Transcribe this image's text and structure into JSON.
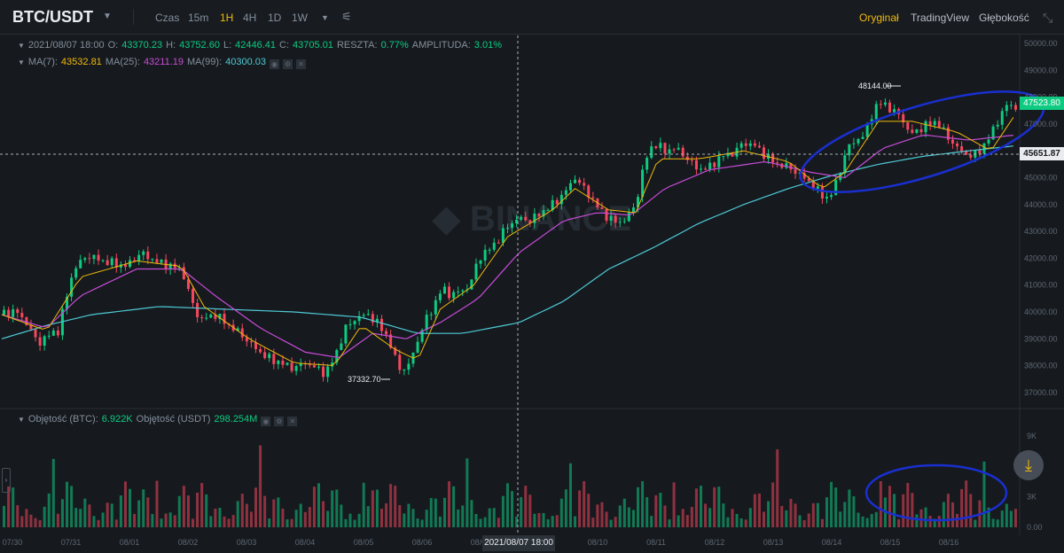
{
  "toolbar": {
    "pair": "BTC/USDT",
    "time_label": "Czas",
    "intervals": [
      "15m",
      "1H",
      "4H",
      "1D",
      "1W"
    ],
    "active_interval": "1H",
    "views": [
      "Oryginał",
      "TradingView",
      "Głębokość"
    ],
    "active_view": "Oryginał"
  },
  "ohlc": {
    "date": "2021/08/07 18:00",
    "o_label": "O:",
    "o": "43370.23",
    "h_label": "H:",
    "h": "43752.60",
    "l_label": "L:",
    "l": "42446.41",
    "c_label": "C:",
    "c": "43705.01",
    "change_label": "RESZTA:",
    "change": "0.77%",
    "amp_label": "AMPLITUDA:",
    "amp": "3.01%"
  },
  "ma": {
    "ma7_label": "MA(7):",
    "ma7": "43532.81",
    "ma25_label": "MA(25):",
    "ma25": "43211.19",
    "ma99_label": "MA(99):",
    "ma99": "40300.03"
  },
  "volume_info": {
    "btc_label": "Objętość (BTC):",
    "btc": "6.922K",
    "usdt_label": "Objętość (USDT)",
    "usdt": "298.254M"
  },
  "colors": {
    "up": "#0ecb81",
    "down": "#f6465d",
    "ma7": "#f0b90b",
    "ma25": "#c74bd8",
    "ma99": "#4ec9d6",
    "annotation": "#1a2fd0",
    "accent": "#f0b90b"
  },
  "price_tag": "47523.80",
  "crosshair_price": "45651.87",
  "crosshair_date": "2021/08/07 18:00",
  "annotations": {
    "high": "48144.00",
    "low": "37332.70"
  },
  "chart_data": {
    "type": "candlestick",
    "ylim": [
      36500,
      50300
    ],
    "y_ticks": [
      "50000.00",
      "49000.00",
      "48000.00",
      "47000.00",
      "46000.00",
      "45000.00",
      "44000.00",
      "43000.00",
      "42000.00",
      "41000.00",
      "40000.00",
      "39000.00",
      "38000.00",
      "37000.00"
    ],
    "volume_ticks": [
      "9K",
      "6K",
      "3K",
      "0.00"
    ],
    "x_ticks": [
      "07/30",
      "07/31",
      "08/01",
      "08/02",
      "08/03",
      "08/04",
      "08/05",
      "08/06",
      "08/07",
      "08/09",
      "08/10",
      "08/11",
      "08/12",
      "08/13",
      "08/14",
      "08/15",
      "08/16"
    ],
    "price_path": [
      [
        0,
        39900
      ],
      [
        6,
        40050
      ],
      [
        12,
        39500
      ],
      [
        16,
        38800
      ],
      [
        20,
        39100
      ],
      [
        25,
        39300
      ],
      [
        32,
        41600
      ],
      [
        38,
        42100
      ],
      [
        45,
        41900
      ],
      [
        55,
        41700
      ],
      [
        62,
        42200
      ],
      [
        68,
        41900
      ],
      [
        75,
        41700
      ],
      [
        80,
        41600
      ],
      [
        84,
        40500
      ],
      [
        88,
        39700
      ],
      [
        95,
        39900
      ],
      [
        101,
        39500
      ],
      [
        106,
        39200
      ],
      [
        112,
        38700
      ],
      [
        118,
        38300
      ],
      [
        124,
        38100
      ],
      [
        130,
        37900
      ],
      [
        135,
        38100
      ],
      [
        140,
        37900
      ],
      [
        144,
        37700
      ],
      [
        148,
        38300
      ],
      [
        153,
        39400
      ],
      [
        158,
        39800
      ],
      [
        163,
        39900
      ],
      [
        168,
        39500
      ],
      [
        172,
        39000
      ],
      [
        176,
        38000
      ],
      [
        180,
        37800
      ],
      [
        184,
        38700
      ],
      [
        188,
        39600
      ],
      [
        192,
        40200
      ],
      [
        196,
        40900
      ],
      [
        200,
        40600
      ],
      [
        204,
        40800
      ],
      [
        208,
        40900
      ],
      [
        212,
        42000
      ],
      [
        215,
        42200
      ],
      [
        220,
        42600
      ],
      [
        225,
        43200
      ],
      [
        230,
        43500
      ],
      [
        235,
        43400
      ],
      [
        240,
        43700
      ],
      [
        245,
        44000
      ],
      [
        250,
        44400
      ],
      [
        255,
        45000
      ],
      [
        258,
        44700
      ],
      [
        262,
        44300
      ],
      [
        266,
        43800
      ],
      [
        270,
        43500
      ],
      [
        274,
        43300
      ],
      [
        278,
        43500
      ],
      [
        282,
        44000
      ],
      [
        286,
        45600
      ],
      [
        290,
        46300
      ],
      [
        295,
        46000
      ],
      [
        300,
        46100
      ],
      [
        305,
        45700
      ],
      [
        310,
        45300
      ],
      [
        315,
        45400
      ],
      [
        320,
        45800
      ],
      [
        325,
        45900
      ],
      [
        330,
        46300
      ],
      [
        335,
        46200
      ],
      [
        340,
        45800
      ],
      [
        345,
        45500
      ],
      [
        350,
        45400
      ],
      [
        355,
        45100
      ],
      [
        360,
        44800
      ],
      [
        364,
        44400
      ],
      [
        368,
        44200
      ],
      [
        372,
        45000
      ],
      [
        376,
        46100
      ],
      [
        380,
        46400
      ],
      [
        384,
        46600
      ],
      [
        388,
        47600
      ],
      [
        392,
        47800
      ],
      [
        396,
        47500
      ],
      [
        400,
        47300
      ],
      [
        404,
        46600
      ],
      [
        408,
        46800
      ],
      [
        412,
        47000
      ],
      [
        416,
        47100
      ],
      [
        420,
        46600
      ],
      [
        424,
        46200
      ],
      [
        428,
        45900
      ],
      [
        432,
        45800
      ],
      [
        436,
        46100
      ],
      [
        440,
        46600
      ],
      [
        444,
        47300
      ],
      [
        448,
        47800
      ],
      [
        452,
        47500
      ]
    ],
    "ma7_path": [
      [
        0,
        39900
      ],
      [
        20,
        39300
      ],
      [
        35,
        41300
      ],
      [
        60,
        41900
      ],
      [
        80,
        41700
      ],
      [
        90,
        40200
      ],
      [
        110,
        39000
      ],
      [
        130,
        38100
      ],
      [
        148,
        38000
      ],
      [
        160,
        39500
      ],
      [
        175,
        38600
      ],
      [
        185,
        38200
      ],
      [
        195,
        40100
      ],
      [
        210,
        41000
      ],
      [
        225,
        42800
      ],
      [
        245,
        43800
      ],
      [
        255,
        44600
      ],
      [
        270,
        43800
      ],
      [
        282,
        43700
      ],
      [
        292,
        45700
      ],
      [
        310,
        45700
      ],
      [
        330,
        46000
      ],
      [
        350,
        45600
      ],
      [
        365,
        44600
      ],
      [
        375,
        45200
      ],
      [
        390,
        47100
      ],
      [
        405,
        47100
      ],
      [
        425,
        46700
      ],
      [
        440,
        46000
      ],
      [
        452,
        47500
      ]
    ],
    "ma25_path": [
      [
        0,
        39900
      ],
      [
        20,
        39400
      ],
      [
        35,
        40600
      ],
      [
        60,
        41600
      ],
      [
        80,
        41600
      ],
      [
        95,
        40600
      ],
      [
        115,
        39400
      ],
      [
        135,
        38500
      ],
      [
        150,
        38300
      ],
      [
        165,
        39200
      ],
      [
        180,
        39000
      ],
      [
        195,
        39600
      ],
      [
        212,
        40500
      ],
      [
        230,
        42200
      ],
      [
        250,
        43400
      ],
      [
        265,
        43700
      ],
      [
        280,
        43600
      ],
      [
        295,
        44600
      ],
      [
        315,
        45300
      ],
      [
        340,
        45600
      ],
      [
        360,
        45200
      ],
      [
        375,
        45000
      ],
      [
        392,
        46100
      ],
      [
        410,
        46600
      ],
      [
        430,
        46400
      ],
      [
        452,
        46600
      ]
    ],
    "ma99_path": [
      [
        0,
        39000
      ],
      [
        20,
        39500
      ],
      [
        40,
        39900
      ],
      [
        70,
        40200
      ],
      [
        100,
        40100
      ],
      [
        130,
        40000
      ],
      [
        160,
        39800
      ],
      [
        185,
        39200
      ],
      [
        205,
        39200
      ],
      [
        230,
        39600
      ],
      [
        250,
        40400
      ],
      [
        270,
        41600
      ],
      [
        290,
        42400
      ],
      [
        310,
        43300
      ],
      [
        330,
        44000
      ],
      [
        350,
        44600
      ],
      [
        370,
        45100
      ],
      [
        390,
        45500
      ],
      [
        410,
        45800
      ],
      [
        430,
        46000
      ],
      [
        452,
        46200
      ]
    ]
  }
}
